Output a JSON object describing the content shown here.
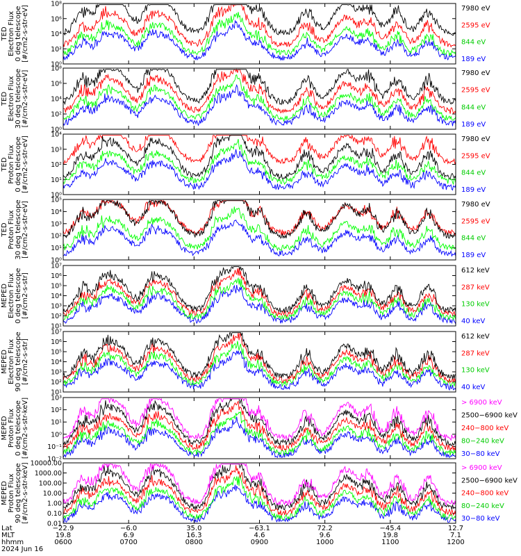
{
  "colors": {
    "blue": "#0000ff",
    "red": "#ff0000",
    "green": "#00ff00",
    "black": "#000000",
    "magenta": "#ff00ff"
  },
  "footer": {
    "row_labels": [
      "Lat",
      "MLT",
      "hhmm",
      "2024 Jun 16"
    ],
    "columns": [
      {
        "lat": "−22.9",
        "mlt": "19.8",
        "hhmm": "0600"
      },
      {
        "lat": "−6.0",
        "mlt": "6.9",
        "hhmm": "0700"
      },
      {
        "lat": "35.0",
        "mlt": "16.3",
        "hhmm": "0800"
      },
      {
        "lat": "−63.1",
        "mlt": "4.6",
        "hhmm": "0900"
      },
      {
        "lat": "72.2",
        "mlt": "9.6",
        "hhmm": "1000"
      },
      {
        "lat": "−45.4",
        "mlt": "19.8",
        "hhmm": "1100"
      },
      {
        "lat": "12.7",
        "mlt": "7.1",
        "hhmm": "1200"
      }
    ]
  },
  "chart_data": [
    {
      "type": "line",
      "ylabel": [
        "TED",
        "Electron Flux",
        "0 deg telescope",
        "[#/cm2-s-str-eV]"
      ],
      "yscale": "log",
      "ytick_labels": [
        "10⁸",
        "10⁶",
        "10⁴",
        "10²",
        "10⁰"
      ],
      "series": [
        {
          "name": "7980 eV",
          "color": "#000000"
        },
        {
          "name": "2595 eV",
          "color": "#ff0000"
        },
        {
          "name": "844 eV",
          "color": "#00ff00"
        },
        {
          "name": "189 eV",
          "color": "#0000ff"
        }
      ]
    },
    {
      "type": "line",
      "ylabel": [
        "TED",
        "Electron Flux",
        "30 deg telescope",
        "[#/cm2-s-str-eV]"
      ],
      "yscale": "log",
      "ytick_labels": [
        "10⁸",
        "10⁶",
        "10⁴",
        "10²",
        "10⁰"
      ],
      "series": [
        {
          "name": "7980 eV",
          "color": "#000000"
        },
        {
          "name": "2595 eV",
          "color": "#ff0000"
        },
        {
          "name": "844 eV",
          "color": "#00ff00"
        },
        {
          "name": "189 eV",
          "color": "#0000ff"
        }
      ]
    },
    {
      "type": "line",
      "ylabel": [
        "TED",
        "Proton Flux",
        "0 deg telescope",
        "[#/cm2-s-str-eV]"
      ],
      "yscale": "log",
      "ytick_labels": [
        "10⁴",
        "10³",
        "10²",
        "10¹",
        "10⁰"
      ],
      "series": [
        {
          "name": "7980 eV",
          "color": "#000000"
        },
        {
          "name": "2595 eV",
          "color": "#ff0000"
        },
        {
          "name": "844 eV",
          "color": "#00ff00"
        },
        {
          "name": "189 eV",
          "color": "#0000ff"
        }
      ]
    },
    {
      "type": "line",
      "ylabel": [
        "TED",
        "Proton Flux",
        "30 deg telescope",
        "[#/cm2-s-str-eV]"
      ],
      "yscale": "log",
      "ytick_labels": [
        "10⁵",
        "10⁴",
        "10³",
        "10²",
        "10¹",
        "10⁰"
      ],
      "series": [
        {
          "name": "7980 eV",
          "color": "#000000"
        },
        {
          "name": "2595 eV",
          "color": "#ff0000"
        },
        {
          "name": "844 eV",
          "color": "#00ff00"
        },
        {
          "name": "189 eV",
          "color": "#0000ff"
        }
      ]
    },
    {
      "type": "line",
      "ylabel": [
        "MEPED",
        "Electron Flux",
        "0 deg telescope",
        "[#/cm2-s-str]"
      ],
      "yscale": "log",
      "ytick_labels": [
        "10⁷",
        "10⁶",
        "10⁵",
        "10⁴",
        "10³",
        "10²",
        "10¹"
      ],
      "series": [
        {
          "name": "612 keV",
          "color": "#000000"
        },
        {
          "name": "287 keV",
          "color": "#ff0000"
        },
        {
          "name": "130 keV",
          "color": "#00ff00"
        },
        {
          "name": "40 keV",
          "color": "#0000ff"
        }
      ]
    },
    {
      "type": "line",
      "ylabel": [
        "MEPED",
        "Electron Flux",
        "90 deg telescope",
        "[#/cm2-s-str]"
      ],
      "yscale": "log",
      "ytick_labels": [
        "10⁷",
        "10⁶",
        "10⁵",
        "10⁴",
        "10³",
        "10²",
        "10¹"
      ],
      "series": [
        {
          "name": "612 keV",
          "color": "#000000"
        },
        {
          "name": "287 keV",
          "color": "#ff0000"
        },
        {
          "name": "130 keV",
          "color": "#00ff00"
        },
        {
          "name": "40 keV",
          "color": "#0000ff"
        }
      ]
    },
    {
      "type": "line",
      "ylabel": [
        "MEPED",
        "Proton Flux",
        "0 deg telescope",
        "[#/cm2-s-str-keV]"
      ],
      "yscale": "log",
      "ytick_labels": [
        "10³",
        "10²",
        "10¹",
        "10⁰",
        "10⁻¹",
        "10⁻²"
      ],
      "series": [
        {
          "name": "> 6900 keV",
          "color": "#ff00ff"
        },
        {
          "name": "2500−6900 keV",
          "color": "#000000"
        },
        {
          "name": "240−800 keV",
          "color": "#ff0000"
        },
        {
          "name": "80−240 keV",
          "color": "#00ff00"
        },
        {
          "name": "30−80 keV",
          "color": "#0000ff"
        }
      ]
    },
    {
      "type": "line",
      "ylabel": [
        "MEPED",
        "Proton Flux",
        "90 deg telescope",
        "[#/cm2-s-str-keV]"
      ],
      "yscale": "log",
      "ytick_labels": [
        "10000.00",
        "1000.00",
        "100.00",
        "10.00",
        "1.00",
        "0.10",
        "0.01"
      ],
      "series": [
        {
          "name": "> 6900 keV",
          "color": "#ff00ff"
        },
        {
          "name": "2500−6900 keV",
          "color": "#000000"
        },
        {
          "name": "240−800 keV",
          "color": "#ff0000"
        },
        {
          "name": "80−240 keV",
          "color": "#00ff00"
        },
        {
          "name": "30−80 keV",
          "color": "#0000ff"
        }
      ]
    }
  ]
}
